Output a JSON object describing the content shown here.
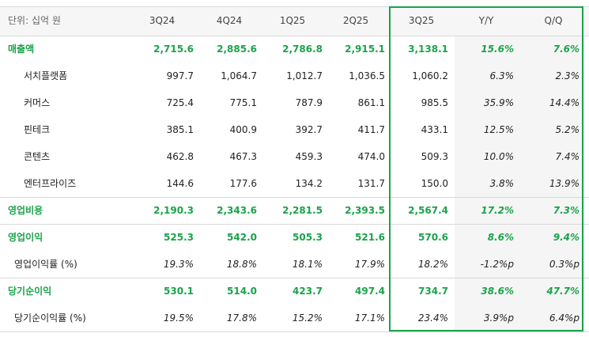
{
  "table": {
    "header": {
      "unit": "단위: 십억 원",
      "columns": [
        "3Q24",
        "4Q24",
        "1Q25",
        "2Q25",
        "3Q25",
        "Y/Y",
        "Q/Q"
      ]
    },
    "highlight_color": "#1aa34a",
    "rows": [
      {
        "label": "매출액",
        "color": "#1aa34a",
        "cells": [
          "2,715.6",
          "2,885.6",
          "2,786.8",
          "2,915.1",
          "3,138.1",
          "15.6%",
          "7.6%"
        ]
      },
      {
        "label": "서치플랫폼",
        "cells": [
          "997.7",
          "1,064.7",
          "1,012.7",
          "1,036.5",
          "1,060.2",
          "6.3%",
          "2.3%"
        ]
      },
      {
        "label": "커머스",
        "cells": [
          "725.4",
          "775.1",
          "787.9",
          "861.1",
          "985.5",
          "35.9%",
          "14.4%"
        ]
      },
      {
        "label": "핀테크",
        "cells": [
          "385.1",
          "400.9",
          "392.7",
          "411.7",
          "433.1",
          "12.5%",
          "5.2%"
        ]
      },
      {
        "label": "콘텐츠",
        "cells": [
          "462.8",
          "467.3",
          "459.3",
          "474.0",
          "509.3",
          "10.0%",
          "7.4%"
        ]
      },
      {
        "label": "엔터프라이즈",
        "cells": [
          "144.6",
          "177.6",
          "134.2",
          "131.7",
          "150.0",
          "3.8%",
          "13.9%"
        ]
      },
      {
        "label": "영업비용",
        "color": "#1aa34a",
        "cells": [
          "2,190.3",
          "2,343.6",
          "2,281.5",
          "2,393.5",
          "2,567.4",
          "17.2%",
          "7.3%"
        ]
      },
      {
        "label": "영업이익",
        "color": "#1aa34a",
        "cells": [
          "525.3",
          "542.0",
          "505.3",
          "521.6",
          "570.6",
          "8.6%",
          "9.4%"
        ]
      },
      {
        "label": "영업이익률 (%)",
        "italic": true,
        "cells": [
          "19.3%",
          "18.8%",
          "18.1%",
          "17.9%",
          "18.2%",
          "-1.2%p",
          "0.3%p"
        ]
      },
      {
        "label": "당기순이익",
        "color": "#1aa34a",
        "cells": [
          "530.1",
          "514.0",
          "423.7",
          "497.4",
          "734.7",
          "38.6%",
          "47.7%"
        ]
      },
      {
        "label": "당기순이익률 (%)",
        "italic": true,
        "cells": [
          "19.5%",
          "17.8%",
          "15.2%",
          "17.1%",
          "23.4%",
          "3.9%p",
          "6.4%p"
        ]
      }
    ]
  }
}
